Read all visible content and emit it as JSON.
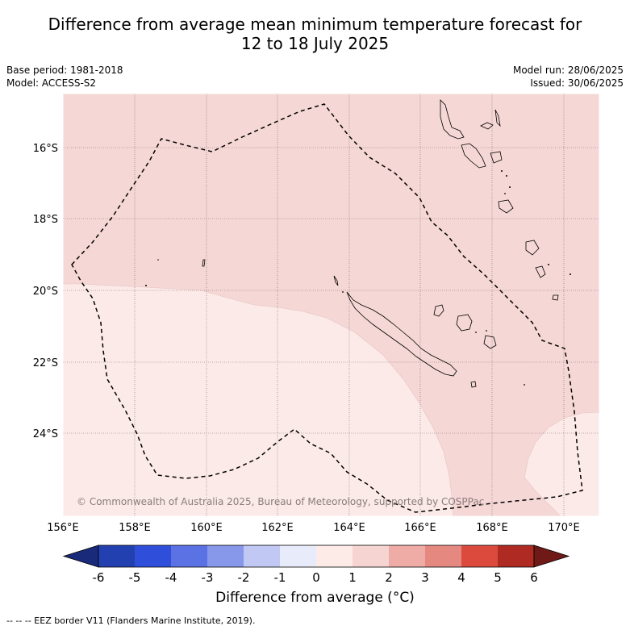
{
  "title_line1": "Difference from average mean minimum temperature forecast for",
  "title_line2": "12 to 18 July 2025",
  "base_period": "Base period: 1981-2018",
  "model": "Model: ACCESS-S2",
  "model_run": "Model run: 28/06/2025",
  "issued": "Issued: 30/06/2025",
  "copyright": "© Commonwealth of Australia 2025, Bureau of Meteorology, supported by COSPPac",
  "lat_labels": [
    "16°S",
    "18°S",
    "20°S",
    "22°S",
    "24°S"
  ],
  "lon_labels": [
    "156°E",
    "158°E",
    "160°E",
    "162°E",
    "164°E",
    "166°E",
    "168°E",
    "170°E"
  ],
  "colorbar": {
    "ticks": [
      "-6",
      "-5",
      "-4",
      "-3",
      "-2",
      "-1",
      "0",
      "1",
      "2",
      "3",
      "4",
      "5",
      "6"
    ],
    "colors": [
      "#1a2a7a",
      "#2340b0",
      "#2f4fdb",
      "#5b72e4",
      "#8797ea",
      "#c1c8f3",
      "#e8ebf9",
      "#fdebe7",
      "#f6d4d1",
      "#efaba5",
      "#e58980",
      "#dc4a3e",
      "#ae2a22",
      "#6f1a16"
    ],
    "title": "Difference from average (",
    "title_unit": "°C)"
  },
  "legend_note": "--  --  -- EEZ border V11 (Flanders Marine Institute, 2019).",
  "fill_colors": {
    "band_0_1": "#fbeae8",
    "band_1_2": "#f5d7d5"
  }
}
